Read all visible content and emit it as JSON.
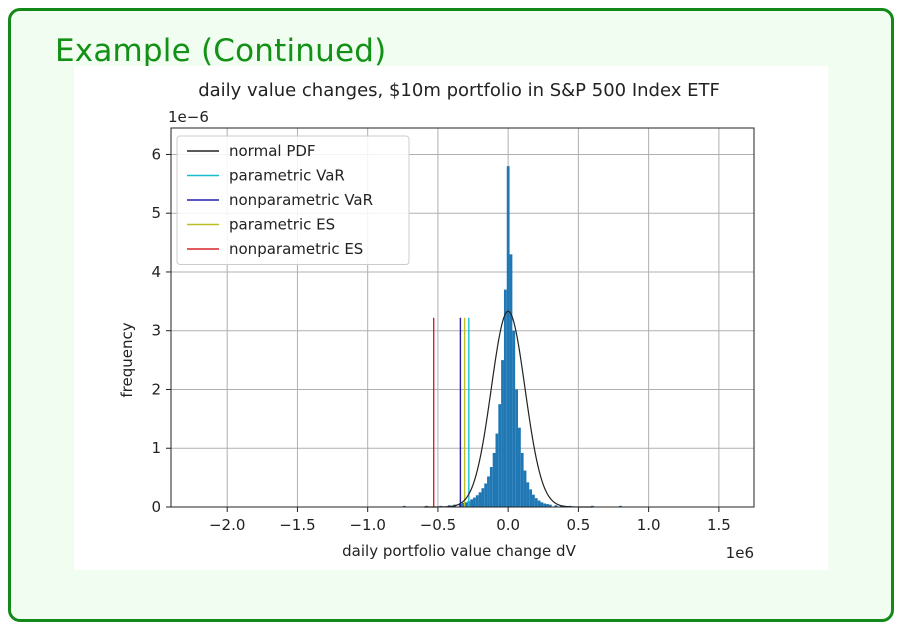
{
  "slide": {
    "title": "Example (Continued)"
  },
  "chart_data": {
    "type": "histogram",
    "title": "daily value changes, $10m portfolio in S&P 500 Index ETF",
    "xlabel": "daily portfolio value change dV",
    "ylabel": "frequency",
    "x_multiplier_label": "1e6",
    "y_multiplier_label": "1e−6",
    "xlim": [
      -2.4,
      1.75
    ],
    "ylim": [
      0,
      6.45
    ],
    "x_ticks": [
      -2.0,
      -1.5,
      -1.0,
      -0.5,
      0.0,
      0.5,
      1.0,
      1.5
    ],
    "x_tick_labels": [
      "−2.0",
      "−1.5",
      "−1.0",
      "−0.5",
      "0.0",
      "0.5",
      "1.0",
      "1.5"
    ],
    "y_ticks": [
      0,
      1,
      2,
      3,
      4,
      5,
      6
    ],
    "y_tick_labels": [
      "0",
      "1",
      "2",
      "3",
      "4",
      "5",
      "6"
    ],
    "grid": true,
    "legend_position": "top-left",
    "histogram": {
      "color": "#1f77b4",
      "bin_width": 0.02,
      "bins": [
        {
          "x": -0.74,
          "y": 0.02
        },
        {
          "x": -0.58,
          "y": 0.02
        },
        {
          "x": -0.48,
          "y": 0.02
        },
        {
          "x": -0.42,
          "y": 0.03
        },
        {
          "x": -0.38,
          "y": 0.04
        },
        {
          "x": -0.34,
          "y": 0.05
        },
        {
          "x": -0.32,
          "y": 0.07
        },
        {
          "x": -0.3,
          "y": 0.08
        },
        {
          "x": -0.28,
          "y": 0.1
        },
        {
          "x": -0.26,
          "y": 0.13
        },
        {
          "x": -0.24,
          "y": 0.16
        },
        {
          "x": -0.22,
          "y": 0.2
        },
        {
          "x": -0.2,
          "y": 0.25
        },
        {
          "x": -0.18,
          "y": 0.32
        },
        {
          "x": -0.16,
          "y": 0.4
        },
        {
          "x": -0.14,
          "y": 0.52
        },
        {
          "x": -0.12,
          "y": 0.68
        },
        {
          "x": -0.1,
          "y": 0.92
        },
        {
          "x": -0.08,
          "y": 1.25
        },
        {
          "x": -0.06,
          "y": 1.75
        },
        {
          "x": -0.04,
          "y": 2.5
        },
        {
          "x": -0.02,
          "y": 3.7
        },
        {
          "x": 0.0,
          "y": 5.8
        },
        {
          "x": 0.02,
          "y": 4.3
        },
        {
          "x": 0.04,
          "y": 3.0
        },
        {
          "x": 0.06,
          "y": 2.0
        },
        {
          "x": 0.08,
          "y": 1.35
        },
        {
          "x": 0.1,
          "y": 0.92
        },
        {
          "x": 0.12,
          "y": 0.62
        },
        {
          "x": 0.14,
          "y": 0.42
        },
        {
          "x": 0.16,
          "y": 0.3
        },
        {
          "x": 0.18,
          "y": 0.21
        },
        {
          "x": 0.2,
          "y": 0.15
        },
        {
          "x": 0.22,
          "y": 0.11
        },
        {
          "x": 0.24,
          "y": 0.08
        },
        {
          "x": 0.26,
          "y": 0.06
        },
        {
          "x": 0.28,
          "y": 0.05
        },
        {
          "x": 0.3,
          "y": 0.04
        },
        {
          "x": 0.34,
          "y": 0.03
        },
        {
          "x": 0.38,
          "y": 0.02
        },
        {
          "x": 0.44,
          "y": 0.02
        },
        {
          "x": 0.6,
          "y": 0.02
        },
        {
          "x": 0.8,
          "y": 0.02
        }
      ]
    },
    "normal_pdf": {
      "name": "normal PDF",
      "color": "#222222",
      "mean": 0.0,
      "std": 0.12,
      "peak": 3.33
    },
    "vlines": [
      {
        "name": "parametric VaR",
        "x": -0.28,
        "height": 3.22,
        "color": "#17becf"
      },
      {
        "name": "nonparametric VaR",
        "x": -0.34,
        "height": 3.22,
        "color": "#1f1fa8"
      },
      {
        "name": "parametric ES",
        "x": -0.31,
        "height": 3.22,
        "color": "#bcbd22"
      },
      {
        "name": "nonparametric ES",
        "x": -0.53,
        "height": 3.22,
        "color": "#d62728"
      }
    ],
    "legend": [
      {
        "name": "normal PDF",
        "color": "#222222"
      },
      {
        "name": "parametric VaR",
        "color": "#17becf"
      },
      {
        "name": "nonparametric VaR",
        "color": "#1f1fa8"
      },
      {
        "name": "parametric ES",
        "color": "#bcbd22"
      },
      {
        "name": "nonparametric ES",
        "color": "#d62728"
      }
    ]
  }
}
